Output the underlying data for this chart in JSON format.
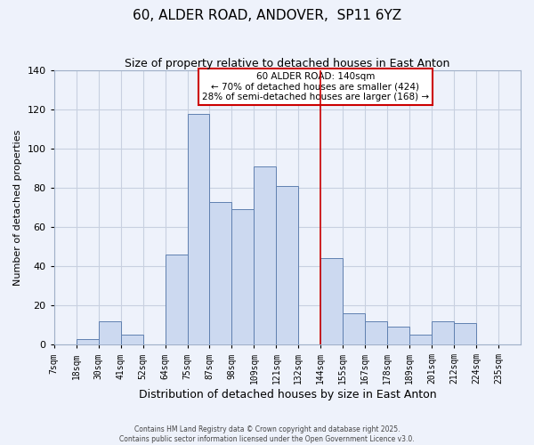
{
  "title": "60, ALDER ROAD, ANDOVER,  SP11 6YZ",
  "subtitle": "Size of property relative to detached houses in East Anton",
  "xlabel": "Distribution of detached houses by size in East Anton",
  "ylabel": "Number of detached properties",
  "bin_labels": [
    "7sqm",
    "18sqm",
    "30sqm",
    "41sqm",
    "52sqm",
    "64sqm",
    "75sqm",
    "87sqm",
    "98sqm",
    "109sqm",
    "121sqm",
    "132sqm",
    "144sqm",
    "155sqm",
    "167sqm",
    "178sqm",
    "189sqm",
    "201sqm",
    "212sqm",
    "224sqm",
    "235sqm"
  ],
  "bar_heights": [
    0,
    3,
    12,
    5,
    0,
    46,
    118,
    73,
    69,
    91,
    81,
    0,
    44,
    16,
    12,
    9,
    5,
    12,
    11,
    0,
    0
  ],
  "bar_fill": "#ccd9f0",
  "bar_edge": "#6080b0",
  "reference_line_x": 12,
  "reference_line_color": "#cc0000",
  "ylim": [
    0,
    140
  ],
  "yticks": [
    0,
    20,
    40,
    60,
    80,
    100,
    120,
    140
  ],
  "grid_color": "#c8d0e0",
  "bg_color": "#eef2fb",
  "annotation_title": "60 ALDER ROAD: 140sqm",
  "annotation_line1": "← 70% of detached houses are smaller (424)",
  "annotation_line2": "28% of semi-detached houses are larger (168) →",
  "annotation_box_color": "#ffffff",
  "annotation_box_edge": "#cc0000",
  "footer1": "Contains HM Land Registry data © Crown copyright and database right 2025.",
  "footer2": "Contains public sector information licensed under the Open Government Licence v3.0."
}
